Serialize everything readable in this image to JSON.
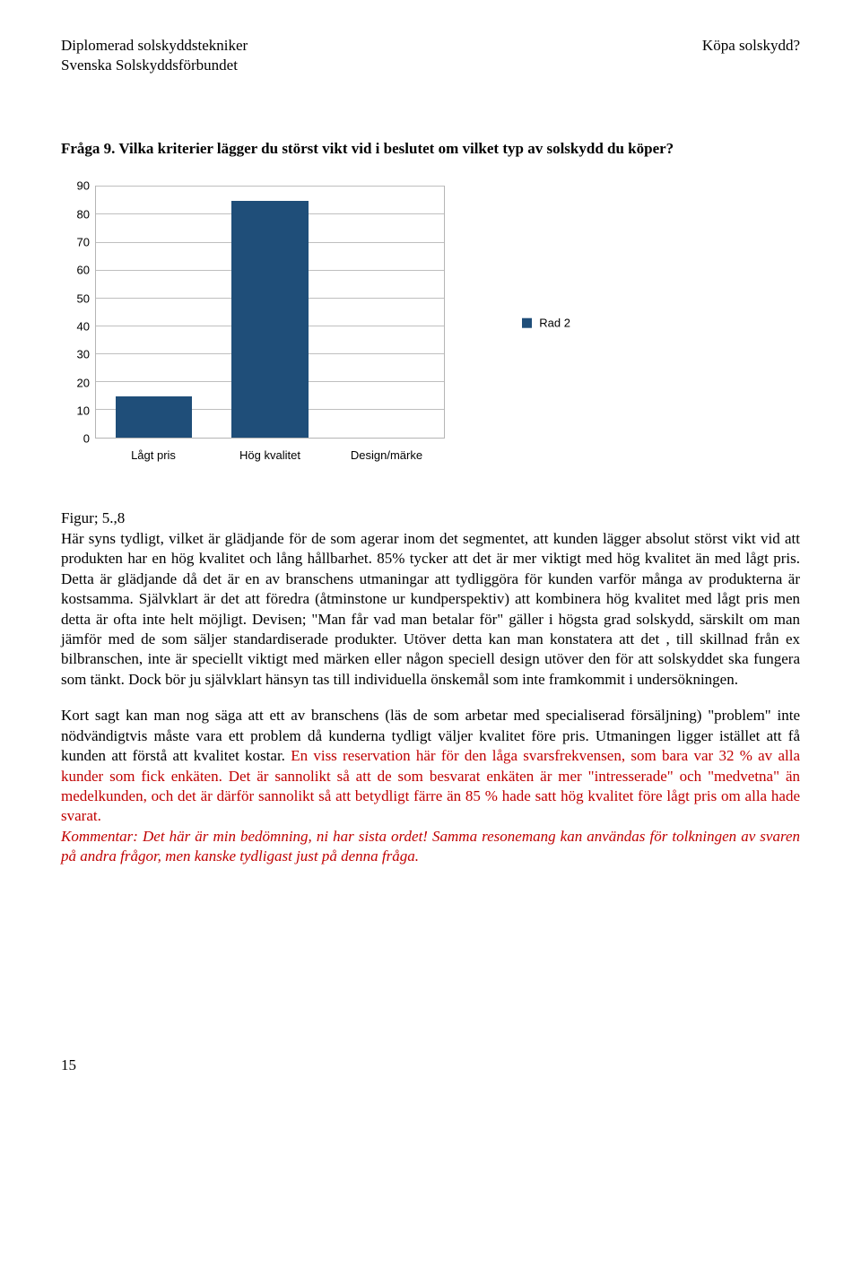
{
  "header": {
    "left_line1": "Diplomerad solskyddstekniker",
    "left_line2": "Svenska Solskyddsförbundet",
    "right": "Köpa solskydd?"
  },
  "question": "Fråga 9. Vilka kriterier lägger du störst vikt vid i beslutet om vilket typ av solskydd du köper?",
  "chart": {
    "type": "bar",
    "ylim_max": 90,
    "ytick_step": 10,
    "yticks": [
      0,
      10,
      20,
      30,
      40,
      50,
      60,
      70,
      80,
      90
    ],
    "categories": [
      "Lågt pris",
      "Hög kvalitet",
      "Design/märke"
    ],
    "values": [
      15,
      85,
      0
    ],
    "bar_color": "#1f4e79",
    "grid_color": "#bfbfbf",
    "plot_border_color": "#b5b5b5",
    "background_color": "#ffffff",
    "legend_label": "Rad 2",
    "legend_swatch_color": "#1f4e79",
    "axis_font_size": 13,
    "bar_width_ratio": 0.66
  },
  "figure_label": "Figur; 5.,8",
  "para1_black": "Här syns tydligt, vilket är glädjande för de som agerar inom det segmentet, att kunden lägger absolut störst vikt vid att produkten har en hög kvalitet och lång hållbarhet. 85% tycker att det är mer viktigt med hög kvalitet än med lågt pris. Detta är glädjande då det är en av branschens utmaningar att tydliggöra för kunden varför många av produkterna är kostsamma. Självklart är det att föredra (åtminstone ur kundperspektiv) att kombinera hög kvalitet med lågt pris men detta är ofta inte helt möjligt. Devisen; \"Man får vad man betalar för\" gäller i högsta grad solskydd, särskilt om man jämför med de som säljer standardiserade produkter. Utöver detta kan man konstatera att det , till skillnad från ex bilbranschen, inte är speciellt viktigt med märken eller någon speciell design utöver den för att solskyddet ska fungera som tänkt. Dock bör ju självklart hänsyn tas till individuella önskemål som inte framkommit i undersökningen.",
  "para2_black": "Kort sagt kan man nog säga att ett av branschens (läs de som arbetar med specialiserad försäljning) \"problem\" inte nödvändigtvis måste vara ett problem då kunderna tydligt väljer kvalitet före pris. Utmaningen ligger istället att få kunden att förstå att kvalitet kostar. ",
  "para2_red1": "En viss reservation här för den låga svarsfrekvensen, som bara var 32 % av alla kunder som fick enkäten. Det är sannolikt så att de som besvarat enkäten är mer \"intresserade\" och \"medvetna\" än medelkunden, och det är därför sannolikt så att betydligt färre än 85 % hade satt hög kvalitet före lågt pris om alla hade svarat.",
  "para2_red2_italic": "Kommentar: Det här är min bedömning, ni har sista ordet! Samma resonemang kan användas för tolkningen av svaren på andra frågor, men kanske tydligast just på denna fråga.",
  "red_color": "#c00000",
  "page_number": "15"
}
